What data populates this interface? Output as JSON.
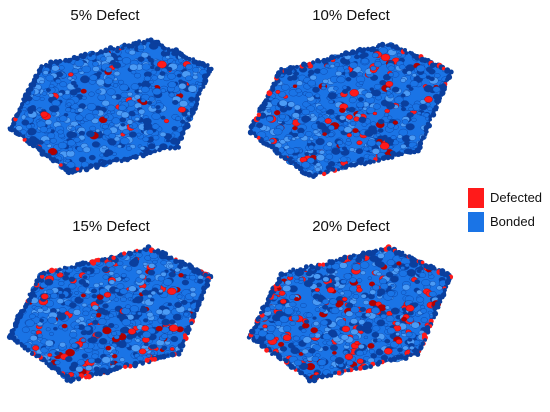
{
  "colors": {
    "bonded": "#1a74e6",
    "bonded_dark": "#0a3f9e",
    "bonded_light": "#4b9bf5",
    "defected": "#ff1a1a",
    "defected_dark": "#b00000"
  },
  "panels": [
    {
      "title": "5% Defect",
      "defect_fraction": 0.05
    },
    {
      "title": "10% Defect",
      "defect_fraction": 0.1
    },
    {
      "title": "15% Defect",
      "defect_fraction": 0.15
    },
    {
      "title": "20% Defect",
      "defect_fraction": 0.2
    }
  ],
  "legend": {
    "items": [
      {
        "label": "Defected",
        "color": "#ff1a1a"
      },
      {
        "label": "Bonded",
        "color": "#1a74e6"
      }
    ]
  }
}
